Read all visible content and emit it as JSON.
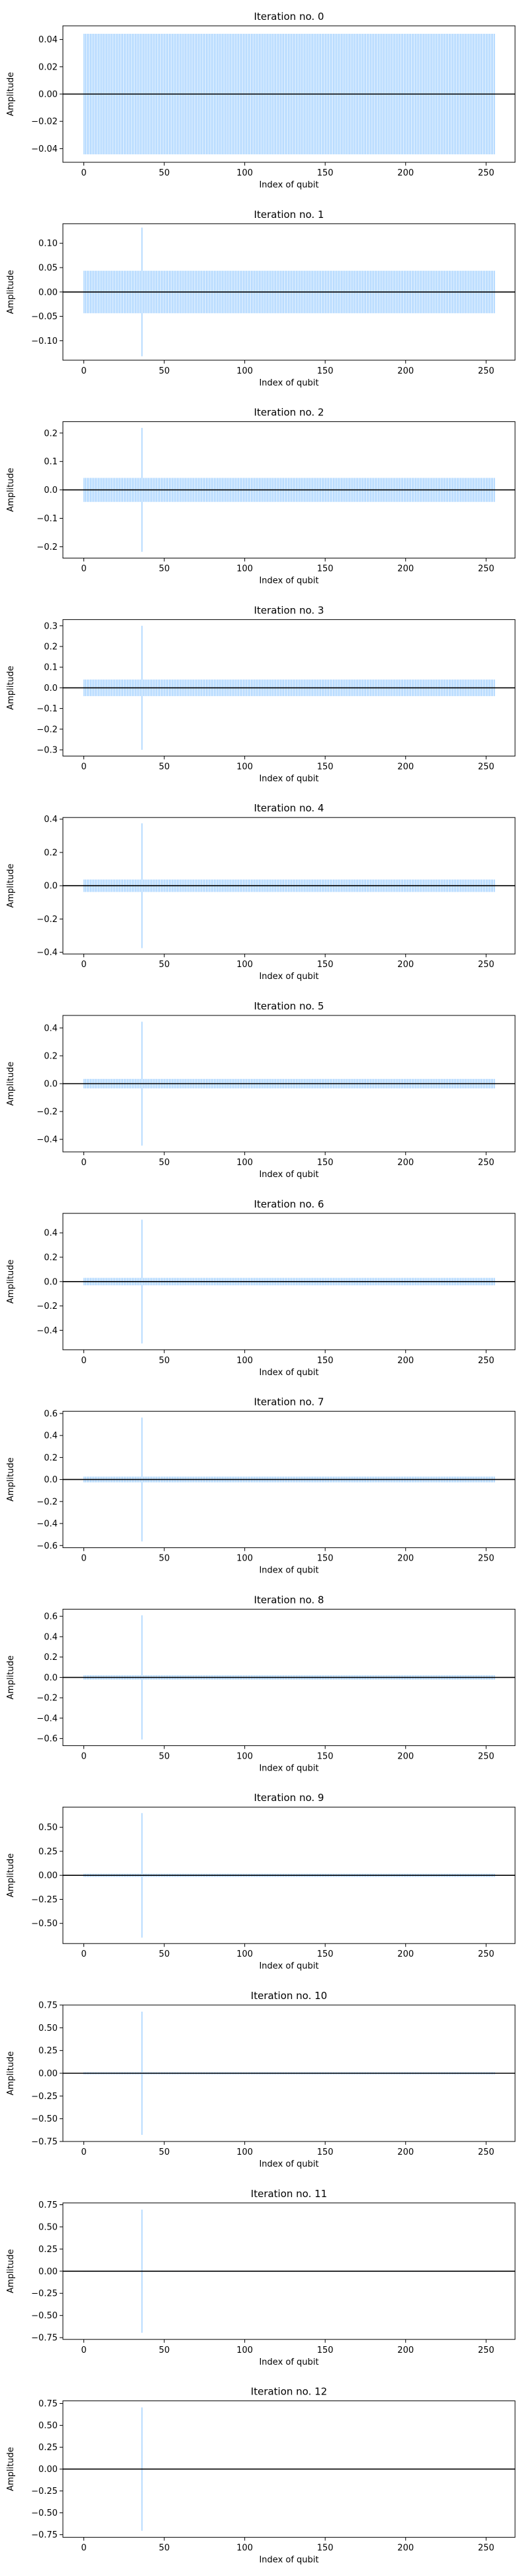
{
  "figure": {
    "panel_count": 13
  },
  "colors": {
    "bars": "#99ccff",
    "zero_line": "#000000"
  },
  "chart_data": [
    {
      "type": "bar",
      "title": "Iteration no. 0",
      "xlabel": "Index of qubit",
      "ylabel": "Amplitude",
      "n_qubits": 256,
      "marked_index": 36,
      "uniform_amplitude": 0.0442,
      "marked_amplitude": 0.0442,
      "xlim": [
        -13,
        268
      ],
      "ylim": [
        -0.05,
        0.05
      ],
      "xticks": [
        0,
        50,
        100,
        150,
        200,
        250
      ],
      "yticks": [
        -0.04,
        -0.02,
        0.0,
        0.02,
        0.04
      ],
      "ytick_labels": [
        "−0.04",
        "−0.02",
        "0.00",
        "0.02",
        "0.04"
      ]
    },
    {
      "type": "bar",
      "title": "Iteration no. 1",
      "xlabel": "Index of qubit",
      "ylabel": "Amplitude",
      "n_qubits": 256,
      "marked_index": 36,
      "uniform_amplitude": 0.0436,
      "marked_amplitude": 0.132,
      "xlim": [
        -13,
        268
      ],
      "ylim": [
        -0.14,
        0.14
      ],
      "xticks": [
        0,
        50,
        100,
        150,
        200,
        250
      ],
      "yticks": [
        -0.1,
        -0.05,
        0.0,
        0.05,
        0.1
      ],
      "ytick_labels": [
        "−0.10",
        "−0.05",
        "0.00",
        "0.05",
        "0.10"
      ]
    },
    {
      "type": "bar",
      "title": "Iteration no. 2",
      "xlabel": "Index of qubit",
      "ylabel": "Amplitude",
      "n_qubits": 256,
      "marked_index": 36,
      "uniform_amplitude": 0.0422,
      "marked_amplitude": 0.218,
      "xlim": [
        -13,
        268
      ],
      "ylim": [
        -0.24,
        0.24
      ],
      "xticks": [
        0,
        50,
        100,
        150,
        200,
        250
      ],
      "yticks": [
        -0.2,
        -0.1,
        0.0,
        0.1,
        0.2
      ],
      "ytick_labels": [
        "−0.2",
        "−0.1",
        "0.0",
        "0.1",
        "0.2"
      ]
    },
    {
      "type": "bar",
      "title": "Iteration no. 3",
      "xlabel": "Index of qubit",
      "ylabel": "Amplitude",
      "n_qubits": 256,
      "marked_index": 36,
      "uniform_amplitude": 0.0401,
      "marked_amplitude": 0.3,
      "xlim": [
        -13,
        268
      ],
      "ylim": [
        -0.33,
        0.33
      ],
      "xticks": [
        0,
        50,
        100,
        150,
        200,
        250
      ],
      "yticks": [
        -0.3,
        -0.2,
        -0.1,
        0.0,
        0.1,
        0.2,
        0.3
      ],
      "ytick_labels": [
        "−0.3",
        "−0.2",
        "−0.1",
        "0.0",
        "0.1",
        "0.2",
        "0.3"
      ]
    },
    {
      "type": "bar",
      "title": "Iteration no. 4",
      "xlabel": "Index of qubit",
      "ylabel": "Amplitude",
      "n_qubits": 256,
      "marked_index": 36,
      "uniform_amplitude": 0.0374,
      "marked_amplitude": 0.375,
      "xlim": [
        -13,
        268
      ],
      "ylim": [
        -0.41,
        0.41
      ],
      "xticks": [
        0,
        50,
        100,
        150,
        200,
        250
      ],
      "yticks": [
        -0.4,
        -0.2,
        0.0,
        0.2,
        0.4
      ],
      "ytick_labels": [
        "−0.4",
        "−0.2",
        "0.0",
        "0.2",
        "0.4"
      ]
    },
    {
      "type": "bar",
      "title": "Iteration no. 5",
      "xlabel": "Index of qubit",
      "ylabel": "Amplitude",
      "n_qubits": 256,
      "marked_index": 36,
      "uniform_amplitude": 0.0341,
      "marked_amplitude": 0.445,
      "xlim": [
        -13,
        268
      ],
      "ylim": [
        -0.49,
        0.49
      ],
      "xticks": [
        0,
        50,
        100,
        150,
        200,
        250
      ],
      "yticks": [
        -0.4,
        -0.2,
        0.0,
        0.2,
        0.4
      ],
      "ytick_labels": [
        "−0.4",
        "−0.2",
        "0.0",
        "0.2",
        "0.4"
      ]
    },
    {
      "type": "bar",
      "title": "Iteration no. 6",
      "xlabel": "Index of qubit",
      "ylabel": "Amplitude",
      "n_qubits": 256,
      "marked_index": 36,
      "uniform_amplitude": 0.0303,
      "marked_amplitude": 0.508,
      "xlim": [
        -13,
        268
      ],
      "ylim": [
        -0.56,
        0.56
      ],
      "xticks": [
        0,
        50,
        100,
        150,
        200,
        250
      ],
      "yticks": [
        -0.4,
        -0.2,
        0.0,
        0.2,
        0.4
      ],
      "ytick_labels": [
        "−0.4",
        "−0.2",
        "0.0",
        "0.2",
        "0.4"
      ]
    },
    {
      "type": "bar",
      "title": "Iteration no. 7",
      "xlabel": "Index of qubit",
      "ylabel": "Amplitude",
      "n_qubits": 256,
      "marked_index": 36,
      "uniform_amplitude": 0.0261,
      "marked_amplitude": 0.563,
      "xlim": [
        -13,
        268
      ],
      "ylim": [
        -0.62,
        0.62
      ],
      "xticks": [
        0,
        50,
        100,
        150,
        200,
        250
      ],
      "yticks": [
        -0.6,
        -0.4,
        -0.2,
        0.0,
        0.2,
        0.4,
        0.6
      ],
      "ytick_labels": [
        "−0.6",
        "−0.4",
        "−0.2",
        "0.0",
        "0.2",
        "0.4",
        "0.6"
      ]
    },
    {
      "type": "bar",
      "title": "Iteration no. 8",
      "xlabel": "Index of qubit",
      "ylabel": "Amplitude",
      "n_qubits": 256,
      "marked_index": 36,
      "uniform_amplitude": 0.0214,
      "marked_amplitude": 0.61,
      "xlim": [
        -13,
        268
      ],
      "ylim": [
        -0.67,
        0.67
      ],
      "xticks": [
        0,
        50,
        100,
        150,
        200,
        250
      ],
      "yticks": [
        -0.6,
        -0.4,
        -0.2,
        0.0,
        0.2,
        0.4,
        0.6
      ],
      "ytick_labels": [
        "−0.6",
        "−0.4",
        "−0.2",
        "0.0",
        "0.2",
        "0.4",
        "0.6"
      ]
    },
    {
      "type": "bar",
      "title": "Iteration no. 9",
      "xlabel": "Index of qubit",
      "ylabel": "Amplitude",
      "n_qubits": 256,
      "marked_index": 36,
      "uniform_amplitude": 0.0165,
      "marked_amplitude": 0.648,
      "xlim": [
        -13,
        268
      ],
      "ylim": [
        -0.71,
        0.71
      ],
      "xticks": [
        0,
        50,
        100,
        150,
        200,
        250
      ],
      "yticks": [
        -0.5,
        -0.25,
        0.0,
        0.25,
        0.5
      ],
      "ytick_labels": [
        "−0.50",
        "−0.25",
        "0.00",
        "0.25",
        "0.50"
      ]
    },
    {
      "type": "bar",
      "title": "Iteration no. 10",
      "xlabel": "Index of qubit",
      "ylabel": "Amplitude",
      "n_qubits": 256,
      "marked_index": 36,
      "uniform_amplitude": 0.0114,
      "marked_amplitude": 0.677,
      "xlim": [
        -13,
        268
      ],
      "ylim": [
        -0.75,
        0.75
      ],
      "xticks": [
        0,
        50,
        100,
        150,
        200,
        250
      ],
      "yticks": [
        -0.75,
        -0.5,
        -0.25,
        0.0,
        0.25,
        0.5,
        0.75
      ],
      "ytick_labels": [
        "−0.75",
        "−0.50",
        "−0.25",
        "0.00",
        "0.25",
        "0.50",
        "0.75"
      ]
    },
    {
      "type": "bar",
      "title": "Iteration no. 11",
      "xlabel": "Index of qubit",
      "ylabel": "Amplitude",
      "n_qubits": 256,
      "marked_index": 36,
      "uniform_amplitude": 0.0061,
      "marked_amplitude": 0.695,
      "xlim": [
        -13,
        268
      ],
      "ylim": [
        -0.77,
        0.77
      ],
      "xticks": [
        0,
        50,
        100,
        150,
        200,
        250
      ],
      "yticks": [
        -0.75,
        -0.5,
        -0.25,
        0.0,
        0.25,
        0.5,
        0.75
      ],
      "ytick_labels": [
        "−0.75",
        "−0.50",
        "−0.25",
        "0.00",
        "0.25",
        "0.50",
        "0.75"
      ]
    },
    {
      "type": "bar",
      "title": "Iteration no. 12",
      "xlabel": "Index of qubit",
      "ylabel": "Amplitude",
      "n_qubits": 256,
      "marked_index": 36,
      "uniform_amplitude": 0.0008,
      "marked_amplitude": 0.705,
      "xlim": [
        -13,
        268
      ],
      "ylim": [
        -0.78,
        0.78
      ],
      "xticks": [
        0,
        50,
        100,
        150,
        200,
        250
      ],
      "yticks": [
        -0.75,
        -0.5,
        -0.25,
        0.0,
        0.25,
        0.5,
        0.75
      ],
      "ytick_labels": [
        "−0.75",
        "−0.50",
        "−0.25",
        "0.00",
        "0.25",
        "0.50",
        "0.75"
      ]
    }
  ]
}
